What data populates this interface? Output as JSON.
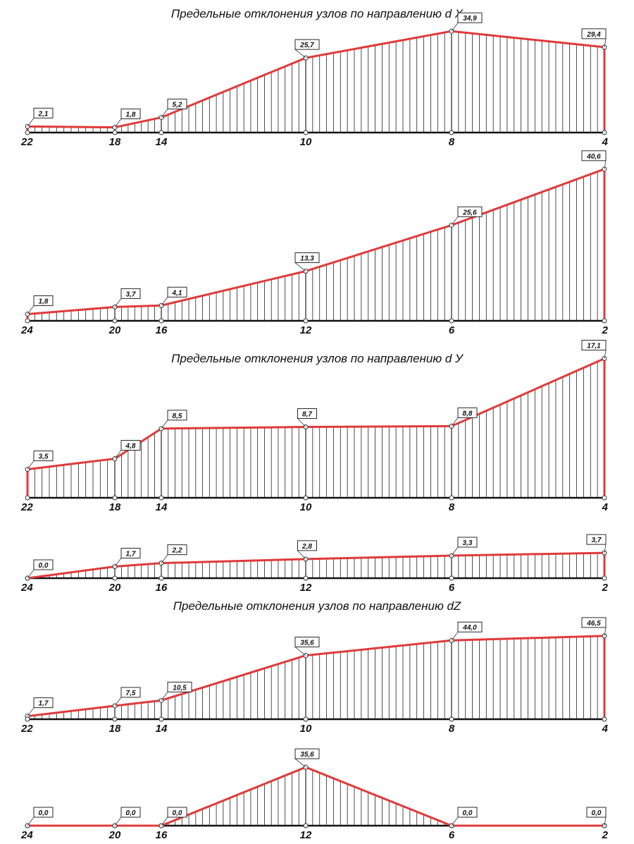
{
  "colors": {
    "curve": "#e03a3a",
    "hatch": "#222222",
    "baseline": "#111111",
    "box": "#111111"
  },
  "chart_data": [
    {
      "type": "area",
      "title": "Предельные отклонения узлов по направлению  d X",
      "categories": [
        "22",
        "18",
        "14",
        "10",
        "8",
        "4"
      ],
      "values": [
        2.1,
        1.8,
        5.2,
        25.7,
        34.9,
        29.4
      ],
      "data_labels": [
        "2,1",
        "1,8",
        "5,2",
        "25,7",
        "34,9",
        "29,4"
      ],
      "grid": false
    },
    {
      "type": "area",
      "title": "",
      "categories": [
        "24",
        "20",
        "16",
        "12",
        "6",
        "2"
      ],
      "values": [
        1.8,
        3.7,
        4.1,
        13.3,
        25.6,
        40.6
      ],
      "data_labels": [
        "1,8",
        "3,7",
        "4,1",
        "13,3",
        "25,6",
        "40,6"
      ],
      "grid": false
    },
    {
      "type": "area",
      "title": "Предельные отклонения узлов по направлению  d У",
      "categories": [
        "22",
        "18",
        "14",
        "10",
        "8",
        "4"
      ],
      "values": [
        3.5,
        4.8,
        8.5,
        8.7,
        8.8,
        17.1
      ],
      "data_labels": [
        "3,5",
        "4,8",
        "8,5",
        "8,7",
        "8,8",
        "17,1"
      ],
      "grid": false
    },
    {
      "type": "area",
      "title": "",
      "categories": [
        "24",
        "20",
        "16",
        "12",
        "6",
        "2"
      ],
      "values": [
        0.0,
        1.7,
        2.2,
        2.8,
        3.3,
        3.7
      ],
      "data_labels": [
        "0,0",
        "1,7",
        "2,2",
        "2,8",
        "3,3",
        "3,7"
      ],
      "grid": false
    },
    {
      "type": "area",
      "title": "Предельные отклонения узлов по направлению  dZ",
      "categories": [
        "22",
        "18",
        "14",
        "10",
        "8",
        "4"
      ],
      "values": [
        1.7,
        7.5,
        10.5,
        35.6,
        44.0,
        46.5
      ],
      "data_labels": [
        "1,7",
        "7,5",
        "10,5",
        "35,6",
        "44,0",
        "46,5"
      ],
      "grid": false
    },
    {
      "type": "area",
      "title": "",
      "categories": [
        "24",
        "20",
        "16",
        "12",
        "6",
        "2"
      ],
      "values": [
        0.0,
        0.0,
        0.0,
        35.6,
        0.0,
        0.0
      ],
      "data_labels": [
        "0,0",
        "0,0",
        "0,0",
        "35,6",
        "0,0",
        "0,0"
      ],
      "grid": false
    }
  ]
}
